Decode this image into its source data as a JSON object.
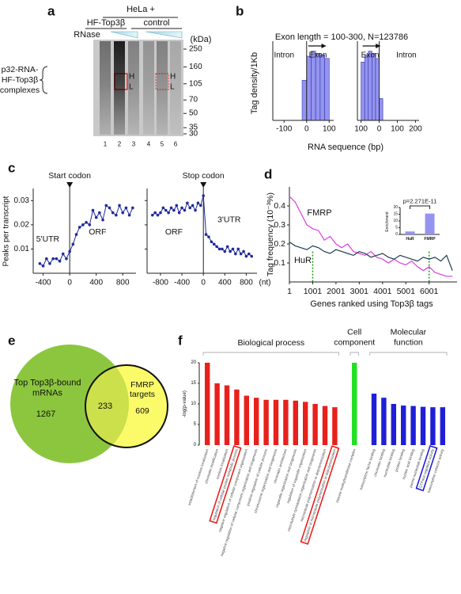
{
  "panel_labels": [
    "a",
    "b",
    "c",
    "d",
    "e",
    "f"
  ],
  "gel": {
    "title": "HeLa +",
    "groups": [
      "HF-Top3β",
      "control"
    ],
    "treatment": "RNase",
    "complex_label": "p32-RNA-HF-Top3β complexes",
    "unit": "(kDa)",
    "markers": [
      250,
      160,
      105,
      70,
      50,
      35,
      30
    ],
    "bands": [
      "H",
      "L"
    ],
    "lanes": [
      1,
      2,
      3,
      4,
      5,
      6
    ]
  },
  "venn": {
    "left": {
      "label": "Top Top3β-bound mRNAs",
      "count": 1267
    },
    "overlap": 233,
    "right": {
      "label": "FMRP targets",
      "count": 609
    }
  },
  "chart_data": [
    {
      "type": "histogram",
      "title": "Exon length = 100-300, N=123786",
      "ylabel": "Tag density/1Kb",
      "xlabel": "RNA sequence (bp)",
      "ylim": [
        0,
        1
      ],
      "color": "#9494f0",
      "subplots": [
        {
          "xlim": [
            -150,
            120
          ],
          "xticks": [
            -100,
            0,
            100
          ],
          "labels": [
            "Intron",
            "Exon"
          ],
          "bins": [
            -20,
            0,
            20,
            40,
            60,
            80,
            100
          ],
          "counts": [
            0.55,
            0.88,
            0.95,
            0.92,
            0.9,
            0.85
          ]
        },
        {
          "xlim": [
            -120,
            220
          ],
          "xticks": [
            {
              "value": -100,
              "label": "100"
            },
            0,
            100,
            200
          ],
          "labels": [
            "Exon",
            "Intron"
          ],
          "bins": [
            -100,
            -80,
            -60,
            -40,
            -20,
            0,
            20
          ],
          "counts": [
            0.8,
            0.9,
            0.95,
            0.92,
            0.85,
            0.3
          ]
        }
      ]
    },
    {
      "type": "line",
      "ylabel": "Peaks per transcript",
      "ylim": [
        0,
        0.035
      ],
      "yticks": [
        0.01,
        0.02,
        0.03
      ],
      "color": "#1f2a9c",
      "x_unit": "(nt)",
      "subplots": [
        {
          "marker": "Start codon",
          "regions": [
            "5'UTR",
            "ORF"
          ],
          "xlim": [
            -550,
            1000
          ],
          "xticks": [
            -400,
            0,
            400,
            800
          ],
          "x": [
            -450,
            -400,
            -350,
            -300,
            -250,
            -200,
            -150,
            -100,
            -50,
            0,
            50,
            100,
            150,
            200,
            250,
            300,
            350,
            400,
            450,
            500,
            550,
            600,
            650,
            700,
            750,
            800,
            850,
            900,
            950
          ],
          "values": [
            0.004,
            0.003,
            0.006,
            0.004,
            0.006,
            0.006,
            0.005,
            0.008,
            0.006,
            0.009,
            0.012,
            0.016,
            0.019,
            0.02,
            0.021,
            0.02,
            0.026,
            0.023,
            0.025,
            0.022,
            0.028,
            0.027,
            0.025,
            0.024,
            0.028,
            0.025,
            0.027,
            0.024,
            0.027
          ]
        },
        {
          "marker": "Stop codon",
          "regions": [
            "ORF",
            "3'UTR"
          ],
          "xlim": [
            -1050,
            1000
          ],
          "xticks": [
            -800,
            -400,
            0,
            400,
            800
          ],
          "x": [
            -950,
            -900,
            -850,
            -800,
            -750,
            -700,
            -650,
            -600,
            -550,
            -500,
            -450,
            -400,
            -350,
            -300,
            -250,
            -200,
            -150,
            -100,
            -50,
            0,
            50,
            100,
            150,
            200,
            250,
            300,
            350,
            400,
            450,
            500,
            550,
            600,
            650,
            700,
            750,
            800,
            850,
            900
          ],
          "values": [
            0.024,
            0.025,
            0.024,
            0.025,
            0.027,
            0.026,
            0.025,
            0.027,
            0.026,
            0.028,
            0.025,
            0.027,
            0.026,
            0.029,
            0.027,
            0.028,
            0.026,
            0.029,
            0.028,
            0.032,
            0.016,
            0.015,
            0.013,
            0.012,
            0.011,
            0.01,
            0.01,
            0.009,
            0.011,
            0.009,
            0.01,
            0.008,
            0.01,
            0.008,
            0.009,
            0.007,
            0.008,
            0.007
          ]
        }
      ]
    },
    {
      "type": "line",
      "ylabel": "Tag frequency (10⁻³%)",
      "xlabel": "Genes ranked using Top3β tags",
      "xlim": [
        1,
        7200
      ],
      "xticks": [
        1,
        1001,
        2001,
        3001,
        4001,
        5001,
        6001
      ],
      "ylim": [
        0,
        0.5
      ],
      "yticks": [
        0.1,
        0.2,
        0.3,
        0.4
      ],
      "marker_lines": [
        1001,
        6001
      ],
      "marker_color": "#1a9a1a",
      "x": [
        1,
        251,
        501,
        751,
        1001,
        1251,
        1501,
        1751,
        2001,
        2251,
        2501,
        2751,
        3001,
        3251,
        3501,
        3751,
        4001,
        4251,
        4501,
        4751,
        5001,
        5251,
        5501,
        5751,
        6001,
        6251,
        6501,
        6751,
        7001
      ],
      "series": [
        {
          "name": "FMRP",
          "color": "#e03ae0",
          "values": [
            0.45,
            0.42,
            0.36,
            0.3,
            0.28,
            0.27,
            0.22,
            0.24,
            0.2,
            0.18,
            0.2,
            0.16,
            0.15,
            0.14,
            0.16,
            0.13,
            0.12,
            0.1,
            0.12,
            0.1,
            0.09,
            0.11,
            0.08,
            0.06,
            0.08,
            0.05,
            0.04,
            0.03,
            0.03
          ]
        },
        {
          "name": "HuR",
          "color": "#1d3f4f",
          "values": [
            0.21,
            0.19,
            0.18,
            0.17,
            0.19,
            0.18,
            0.16,
            0.15,
            0.17,
            0.16,
            0.15,
            0.14,
            0.16,
            0.15,
            0.13,
            0.14,
            0.15,
            0.13,
            0.12,
            0.14,
            0.13,
            0.12,
            0.11,
            0.13,
            0.12,
            0.13,
            0.11,
            0.14,
            0.06
          ]
        }
      ]
    },
    {
      "type": "bar",
      "annotation": "p=2.271E-11",
      "ylabel": "Enrichment",
      "categories": [
        "HuR",
        "FMRP"
      ],
      "values": [
        2.2,
        15.5
      ],
      "color": "#9494f0",
      "ylim": [
        0,
        20
      ],
      "yticks": [
        0,
        5,
        10,
        15,
        20
      ]
    },
    {
      "type": "bar",
      "ylabel": "-log(p-value)",
      "ylim": [
        0,
        20
      ],
      "yticks": [
        0,
        5,
        10,
        15,
        20
      ],
      "groups": [
        {
          "name": "Biological process",
          "color": "#e8201c",
          "boxed": [
            3,
            13
          ],
          "categories": [
            "establishment of nucleus localization",
            "chromatin modification",
            "nucleus localization",
            "regulation of cellular protein metabolic process",
            "negative regulation of cellular component organization",
            "negative regulation of cellular component organization and biogenesis",
            "positive regulation of cellular process",
            "chromosome organization and biogenesis",
            "chromatin architecture",
            "organelle organization and biogenesis",
            "regulation of organelle organization",
            "microtubule cytoskeleton organization and biogenesis",
            "microtubule polymerization or depolymerization",
            "regulation of microtubule polymerization or depolymerization"
          ],
          "values": [
            20,
            15,
            14.5,
            13.5,
            12,
            11.5,
            11,
            11,
            11,
            10.8,
            10.5,
            10,
            9.5,
            9.2
          ]
        },
        {
          "name": "Cell component",
          "color": "#22e022",
          "boxed": [],
          "categories": [
            "histone methyltransferase complex"
          ],
          "values": [
            20
          ]
        },
        {
          "name": "Molecular function",
          "color": "#1f1fd8",
          "boxed": [
            6
          ],
          "categories": [
            "transcription factor binding",
            "chromatin binding",
            "nucleotide binding",
            "protein binding",
            "nucleic acid binding",
            "purine nucleotide binding",
            "GTPase regulator activity",
            "transcription cofactor activity"
          ],
          "values": [
            12.5,
            11.5,
            10,
            9.6,
            9.5,
            9.3,
            9.2,
            9.2
          ]
        }
      ]
    }
  ]
}
